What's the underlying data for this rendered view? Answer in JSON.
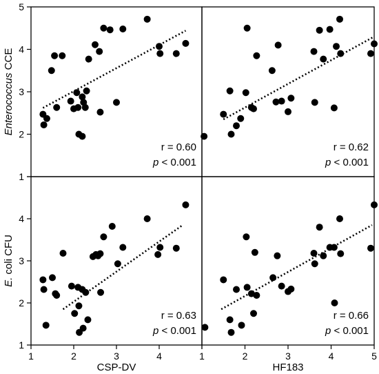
{
  "chart_data": [
    {
      "type": "scatter",
      "row": 0,
      "col": 0,
      "xlabel": "",
      "ylabel": "Enterococcus CCE",
      "xlim": [
        1,
        5
      ],
      "ylim": [
        1,
        5
      ],
      "stat_r": "r = 0.60",
      "stat_p_label": "p",
      "stat_p_rest": " < 0.001",
      "trend": [
        [
          1.28,
          2.62
        ],
        [
          4.62,
          4.44
        ]
      ],
      "points": [
        [
          1.28,
          2.47
        ],
        [
          1.3,
          2.22
        ],
        [
          1.37,
          2.37
        ],
        [
          1.48,
          3.5
        ],
        [
          1.55,
          3.85
        ],
        [
          1.6,
          2.63
        ],
        [
          1.73,
          3.85
        ],
        [
          1.93,
          2.78
        ],
        [
          2.0,
          2.6
        ],
        [
          2.07,
          2.98
        ],
        [
          2.1,
          2.63
        ],
        [
          2.12,
          2.0
        ],
        [
          2.2,
          2.88
        ],
        [
          2.2,
          1.95
        ],
        [
          2.23,
          2.75
        ],
        [
          2.27,
          2.63
        ],
        [
          2.3,
          3.02
        ],
        [
          2.35,
          3.77
        ],
        [
          2.5,
          4.11
        ],
        [
          2.6,
          3.95
        ],
        [
          2.62,
          2.52
        ],
        [
          2.7,
          4.5
        ],
        [
          2.85,
          4.46
        ],
        [
          3.0,
          2.75
        ],
        [
          3.15,
          4.48
        ],
        [
          3.72,
          4.71
        ],
        [
          4.0,
          4.07
        ],
        [
          4.02,
          3.9
        ],
        [
          4.4,
          3.9
        ],
        [
          4.62,
          4.14
        ]
      ]
    },
    {
      "type": "scatter",
      "row": 0,
      "col": 1,
      "xlabel": "",
      "ylabel": "",
      "xlim": [
        1,
        5
      ],
      "ylim": [
        1,
        5
      ],
      "stat_r": "r = 0.62",
      "stat_p_label": "p",
      "stat_p_rest": " < 0.001",
      "trend": [
        [
          1.5,
          2.35
        ],
        [
          5.0,
          4.3
        ]
      ],
      "points": [
        [
          1.05,
          1.95
        ],
        [
          1.5,
          2.47
        ],
        [
          1.65,
          3.02
        ],
        [
          1.68,
          2.0
        ],
        [
          1.8,
          2.2
        ],
        [
          1.9,
          2.37
        ],
        [
          2.02,
          2.98
        ],
        [
          2.05,
          4.5
        ],
        [
          2.15,
          2.63
        ],
        [
          2.2,
          2.6
        ],
        [
          2.27,
          3.85
        ],
        [
          2.63,
          3.5
        ],
        [
          2.72,
          2.76
        ],
        [
          2.77,
          4.1
        ],
        [
          2.85,
          2.78
        ],
        [
          3.0,
          2.53
        ],
        [
          3.07,
          2.85
        ],
        [
          3.6,
          3.95
        ],
        [
          3.62,
          2.75
        ],
        [
          3.73,
          4.45
        ],
        [
          3.82,
          3.77
        ],
        [
          3.97,
          4.47
        ],
        [
          4.07,
          2.62
        ],
        [
          4.12,
          4.07
        ],
        [
          4.2,
          4.71
        ],
        [
          4.22,
          3.9
        ],
        [
          4.92,
          3.9
        ],
        [
          5.0,
          4.13
        ]
      ]
    },
    {
      "type": "scatter",
      "row": 1,
      "col": 0,
      "xlabel": "CSP-DV",
      "ylabel": "E. coli CFU",
      "xlim": [
        1,
        5
      ],
      "ylim": [
        1,
        5
      ],
      "stat_r": "r = 0.63",
      "stat_p_label": "p",
      "stat_p_rest": " < 0.001",
      "trend": [
        [
          1.75,
          1.85
        ],
        [
          4.55,
          3.85
        ]
      ],
      "points": [
        [
          1.28,
          2.55
        ],
        [
          1.3,
          2.32
        ],
        [
          1.35,
          1.47
        ],
        [
          1.5,
          2.6
        ],
        [
          1.57,
          2.22
        ],
        [
          1.6,
          2.18
        ],
        [
          1.75,
          3.18
        ],
        [
          1.95,
          2.4
        ],
        [
          2.02,
          1.75
        ],
        [
          2.1,
          2.37
        ],
        [
          2.12,
          1.93
        ],
        [
          2.13,
          1.3
        ],
        [
          2.2,
          2.32
        ],
        [
          2.22,
          1.4
        ],
        [
          2.28,
          2.25
        ],
        [
          2.33,
          1.6
        ],
        [
          2.45,
          3.1
        ],
        [
          2.52,
          3.15
        ],
        [
          2.57,
          3.12
        ],
        [
          2.62,
          3.17
        ],
        [
          2.63,
          2.25
        ],
        [
          2.7,
          3.57
        ],
        [
          2.9,
          3.82
        ],
        [
          3.03,
          2.93
        ],
        [
          3.15,
          3.32
        ],
        [
          3.72,
          4.0
        ],
        [
          3.97,
          3.15
        ],
        [
          4.02,
          3.32
        ],
        [
          4.4,
          3.3
        ],
        [
          4.62,
          4.33
        ]
      ]
    },
    {
      "type": "scatter",
      "row": 1,
      "col": 1,
      "xlabel": "HF183",
      "ylabel": "",
      "xlim": [
        1,
        5
      ],
      "ylim": [
        1,
        5
      ],
      "stat_r": "r = 0.66",
      "stat_p_label": "p",
      "stat_p_rest": " < 0.001",
      "trend": [
        [
          1.45,
          1.85
        ],
        [
          4.95,
          3.85
        ]
      ],
      "points": [
        [
          1.07,
          1.42
        ],
        [
          1.5,
          2.55
        ],
        [
          1.65,
          1.6
        ],
        [
          1.68,
          1.3
        ],
        [
          1.8,
          2.32
        ],
        [
          1.92,
          1.47
        ],
        [
          2.03,
          3.57
        ],
        [
          2.05,
          2.37
        ],
        [
          2.15,
          2.22
        ],
        [
          2.2,
          1.75
        ],
        [
          2.23,
          3.2
        ],
        [
          2.27,
          2.18
        ],
        [
          2.65,
          2.6
        ],
        [
          2.75,
          3.12
        ],
        [
          2.85,
          2.4
        ],
        [
          3.0,
          2.27
        ],
        [
          3.07,
          2.33
        ],
        [
          3.6,
          3.18
        ],
        [
          3.62,
          2.93
        ],
        [
          3.73,
          3.8
        ],
        [
          3.82,
          3.12
        ],
        [
          3.97,
          3.32
        ],
        [
          4.07,
          3.32
        ],
        [
          4.08,
          2.0
        ],
        [
          4.2,
          4.0
        ],
        [
          4.22,
          3.17
        ],
        [
          4.92,
          3.3
        ],
        [
          5.0,
          4.33
        ]
      ]
    }
  ],
  "axes": {
    "y_ticks": [
      "1",
      "2",
      "3",
      "4",
      "5"
    ],
    "x_ticks": [
      "1",
      "2",
      "3",
      "4",
      "5"
    ]
  }
}
